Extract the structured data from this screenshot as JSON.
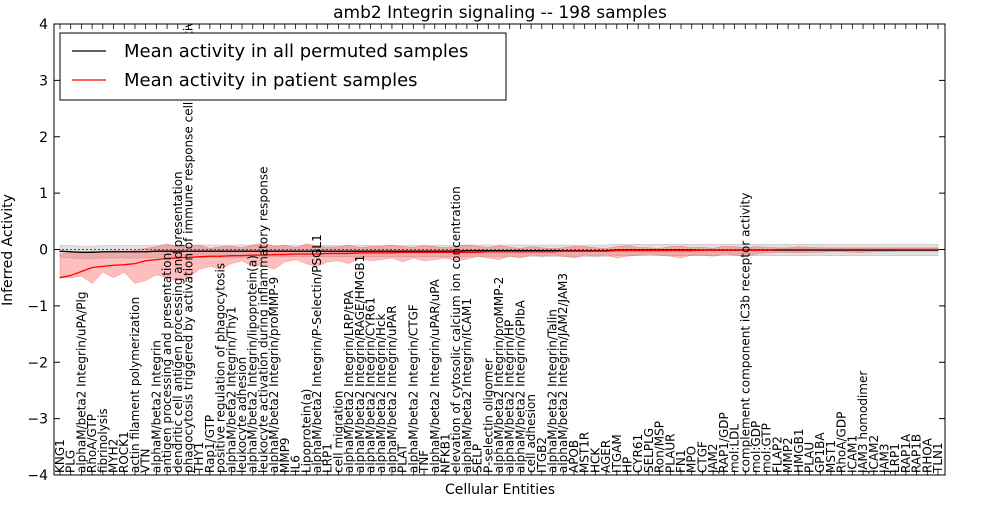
{
  "chart_data": {
    "type": "line",
    "title": "amb2 Integrin signaling -- 198 samples",
    "xlabel": "Cellular Entities",
    "ylabel": "Inferred Activity",
    "ylim": [
      -4,
      4
    ],
    "yticks": [
      -4,
      -3,
      -2,
      -1,
      0,
      1,
      2,
      3,
      4
    ],
    "ytick_labels": [
      "−4",
      "−3",
      "−2",
      "−1",
      "0",
      "1",
      "2",
      "3",
      "4"
    ],
    "legend_position": "top-left",
    "categories": [
      "KNG1",
      "PLG",
      "alphaM/beta2 Integrin/uPA/Plg",
      "RhoA/GTP",
      "fibrinolysis",
      "MYH2",
      "ROCK1",
      "actin filament polymerization",
      "VTN",
      "alphaM/beta2 Integrin",
      "antigen processing and presentation",
      "dendritic cell antigen processing and presentation",
      "phagocytosis triggered by activation of immune response cell surface activating receptor",
      "THY1",
      "Rap1/GTP",
      "positive regulation of phagocytosis",
      "alphaM/beta2 Integrin/Thy1",
      "leukocyte adhesion",
      "alphaM/beta2 Integrin/lipoprotein(a)",
      "leukocyte activation during inflammatory response",
      "alphaM/beta2 Integrin/proMMP-9",
      "MMP9",
      "IL6",
      "Lipoprotein(a)",
      "alphaM/beta2 Integrin/P-Selectin/PSGL1",
      "LRP1",
      "cell migration",
      "alphaM/beta2 Integrin/LRP/tPA",
      "alphaM/beta2 Integrin/RAGE/HMGB1",
      "alphaM/beta2 Integrin/CYR61",
      "alphaM/beta2 Integrin/Hck",
      "alphaM/beta2 Integrin/uPAR",
      "PLAT",
      "alphaM/beta2 Integrin/CTGF",
      "TNF",
      "alphaM/beta2 Integrin/uPAR/uPA",
      "NFKB1",
      "elevation of cytosolic calcium ion concentration",
      "alphaM/beta2 Integrin/ICAM1",
      "SELP",
      "P-selectin oligomer",
      "alphaM/beta2 Integrin/proMMP-2",
      "alphaM/beta2 Integrin/HP",
      "alphaM/beta2 Integrin/GPIbA",
      "cell adhesion",
      "ITGB2",
      "alphaM/beta2 Integrin/Talin",
      "alphaM/beta2 Integrin/JAM2/JAM3",
      "APOB",
      "MST1R",
      "HCK",
      "AGER",
      "ITGAM",
      "HP",
      "CYR61",
      "SELPLG",
      "Ron/MSP",
      "PLAUR",
      "FN1",
      "MPO",
      "CTGF",
      "JAM2",
      "RAP1/GDP",
      "mol:LDL",
      "complement component iC3b receptor activity",
      "mol:GDP",
      "mol:GTP",
      "FLAP2",
      "MMP2",
      "HMGB1",
      "PLAU",
      "GP1BA",
      "MST1",
      "RhoA/GDP",
      "ICAM1",
      "JAM3 homodimer",
      "ICAM2",
      "JAM3",
      "LRP1",
      "RAP1A",
      "RAP1B",
      "RHOA",
      "TLN1"
    ],
    "series": [
      {
        "name": "Mean activity in all permuted samples",
        "color": "#000000",
        "values": [
          -0.03,
          -0.04,
          -0.05,
          -0.05,
          -0.04,
          -0.04,
          -0.04,
          -0.04,
          -0.04,
          -0.03,
          -0.03,
          -0.03,
          -0.03,
          -0.03,
          -0.03,
          -0.03,
          -0.03,
          -0.03,
          -0.03,
          -0.03,
          -0.03,
          -0.03,
          -0.03,
          -0.03,
          -0.03,
          -0.03,
          -0.03,
          -0.03,
          -0.03,
          -0.03,
          -0.03,
          -0.03,
          -0.03,
          -0.03,
          -0.03,
          -0.03,
          -0.03,
          -0.03,
          -0.02,
          -0.02,
          -0.02,
          -0.02,
          -0.02,
          -0.02,
          -0.02,
          -0.02,
          -0.02,
          -0.02,
          -0.02,
          -0.02,
          -0.02,
          -0.02,
          -0.01,
          -0.01,
          -0.01,
          -0.01,
          -0.01,
          -0.01,
          -0.01,
          -0.01,
          -0.01,
          -0.01,
          -0.01,
          -0.01,
          -0.01,
          -0.01,
          -0.01,
          -0.01,
          -0.01,
          -0.01,
          -0.01,
          -0.01,
          -0.01,
          -0.01,
          -0.01,
          -0.01,
          -0.01,
          -0.01,
          -0.01,
          -0.01,
          -0.01,
          -0.01,
          -0.01
        ],
        "band_halfwidth": [
          0.11,
          0.11,
          0.11,
          0.11,
          0.11,
          0.11,
          0.11,
          0.11,
          0.11,
          0.11,
          0.11,
          0.11,
          0.11,
          0.11,
          0.11,
          0.11,
          0.11,
          0.11,
          0.11,
          0.1,
          0.1,
          0.1,
          0.1,
          0.1,
          0.1,
          0.1,
          0.1,
          0.1,
          0.1,
          0.1,
          0.1,
          0.1,
          0.1,
          0.1,
          0.1,
          0.1,
          0.1,
          0.1,
          0.1,
          0.1,
          0.1,
          0.1,
          0.1,
          0.1,
          0.1,
          0.1,
          0.1,
          0.1,
          0.1,
          0.1,
          0.1,
          0.1,
          0.1,
          0.1,
          0.1,
          0.1,
          0.1,
          0.1,
          0.1,
          0.1,
          0.1,
          0.1,
          0.1,
          0.1,
          0.1,
          0.1,
          0.1,
          0.1,
          0.1,
          0.1,
          0.1,
          0.1,
          0.1,
          0.1,
          0.1,
          0.1,
          0.1,
          0.1,
          0.1,
          0.1,
          0.1,
          0.1,
          0.1
        ]
      },
      {
        "name": "Mean activity in patient samples",
        "color": "#ff0000",
        "values": [
          -0.5,
          -0.46,
          -0.39,
          -0.32,
          -0.3,
          -0.28,
          -0.27,
          -0.25,
          -0.2,
          -0.18,
          -0.16,
          -0.15,
          -0.14,
          -0.13,
          -0.12,
          -0.12,
          -0.11,
          -0.11,
          -0.1,
          -0.1,
          -0.09,
          -0.09,
          -0.08,
          -0.08,
          -0.08,
          -0.07,
          -0.07,
          -0.07,
          -0.06,
          -0.06,
          -0.06,
          -0.06,
          -0.05,
          -0.05,
          -0.05,
          -0.05,
          -0.05,
          -0.05,
          -0.05,
          -0.05,
          -0.04,
          -0.04,
          -0.04,
          -0.04,
          -0.04,
          -0.04,
          -0.04,
          -0.03,
          -0.03,
          -0.03,
          -0.03,
          -0.03,
          -0.02,
          -0.02,
          -0.02,
          -0.02,
          -0.02,
          -0.02,
          -0.02,
          -0.02,
          -0.01,
          -0.01,
          -0.01,
          -0.01,
          -0.01,
          -0.01,
          -0.01,
          0.0,
          0.0,
          0.0,
          0.0,
          0.0,
          0.0,
          0.0,
          0.0,
          0.0,
          0.0,
          0.0,
          0.0,
          0.0,
          0.0,
          0.0,
          0.0
        ],
        "band_lower": [
          -0.5,
          -0.5,
          -0.47,
          -0.6,
          -0.4,
          -0.5,
          -0.4,
          -0.6,
          -0.55,
          -0.45,
          -0.5,
          -0.55,
          -0.5,
          -0.35,
          -0.3,
          -0.35,
          -0.25,
          -0.2,
          -0.3,
          -0.28,
          -0.35,
          -0.22,
          -0.18,
          -0.25,
          -0.3,
          -0.22,
          -0.2,
          -0.25,
          -0.15,
          -0.2,
          -0.18,
          -0.15,
          -0.22,
          -0.15,
          -0.2,
          -0.18,
          -0.15,
          -0.2,
          -0.17,
          -0.12,
          -0.15,
          -0.18,
          -0.12,
          -0.15,
          -0.1,
          -0.12,
          -0.1,
          -0.12,
          -0.15,
          -0.1,
          -0.12,
          -0.1,
          -0.15,
          -0.12,
          -0.1,
          -0.08,
          -0.1,
          -0.12,
          -0.15,
          -0.1,
          -0.1,
          -0.12,
          -0.08,
          -0.1,
          -0.12,
          -0.08,
          -0.06,
          -0.05,
          -0.05,
          -0.06,
          -0.05,
          -0.05,
          -0.04,
          -0.04,
          -0.05,
          -0.05,
          -0.04,
          -0.04,
          -0.03,
          -0.03,
          -0.03,
          -0.03,
          -0.03
        ],
        "band_upper": [
          -0.08,
          -0.05,
          -0.06,
          -0.03,
          -0.05,
          -0.02,
          -0.03,
          -0.02,
          0.02,
          0.05,
          0.1,
          0.04,
          0.05,
          0.08,
          0.02,
          0.05,
          0.06,
          0.03,
          0.08,
          0.12,
          0.05,
          0.08,
          0.03,
          0.1,
          0.07,
          0.04,
          0.05,
          0.08,
          0.03,
          0.05,
          0.06,
          0.08,
          0.05,
          0.04,
          0.07,
          0.05,
          0.03,
          0.05,
          0.08,
          0.06,
          0.03,
          0.07,
          0.04,
          0.02,
          0.05,
          0.03,
          0.02,
          0.03,
          0.06,
          0.05,
          0.03,
          0.02,
          0.05,
          0.07,
          0.04,
          0.03,
          0.02,
          0.05,
          0.06,
          0.03,
          0.04,
          0.02,
          0.06,
          0.05,
          0.03,
          0.05,
          0.04,
          0.03,
          0.03,
          0.05,
          0.04,
          0.03,
          0.03,
          0.03,
          0.03,
          0.03,
          0.03,
          0.03,
          0.03,
          0.03,
          0.03,
          0.03,
          0.03
        ]
      }
    ]
  }
}
